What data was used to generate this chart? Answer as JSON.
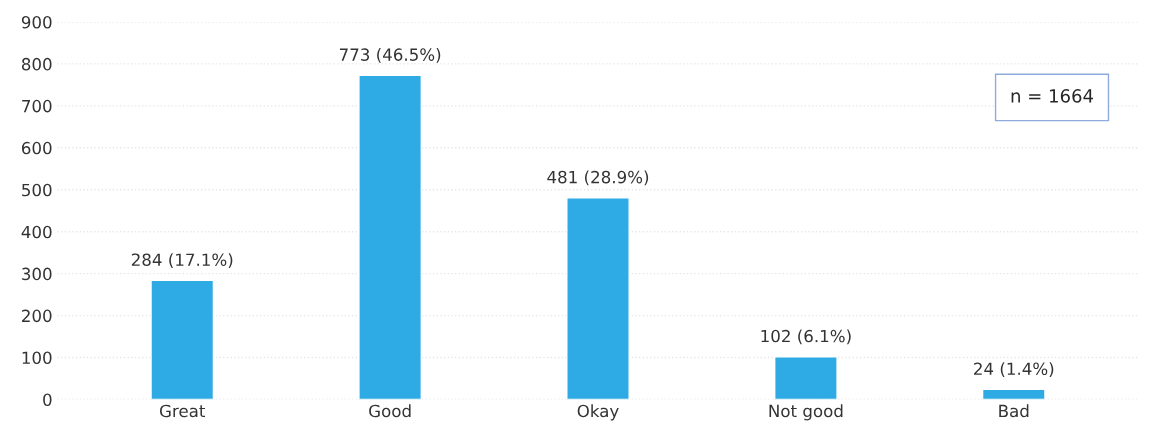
{
  "chart_data": {
    "type": "bar",
    "categories": [
      "Great",
      "Good",
      "Okay",
      "Not good",
      "Bad"
    ],
    "values": [
      284,
      773,
      481,
      102,
      24
    ],
    "value_labels": [
      "284 (17.1%)",
      "773 (46.5%)",
      "481 (28.9%)",
      "102 (6.1%)",
      "24 (1.4%)"
    ],
    "color": "#2eaae4",
    "ylim": [
      0,
      900
    ],
    "yticks": [
      0,
      100,
      200,
      300,
      400,
      500,
      600,
      700,
      800,
      900
    ],
    "grid": "y",
    "annotations": [
      "n = 1664"
    ]
  }
}
